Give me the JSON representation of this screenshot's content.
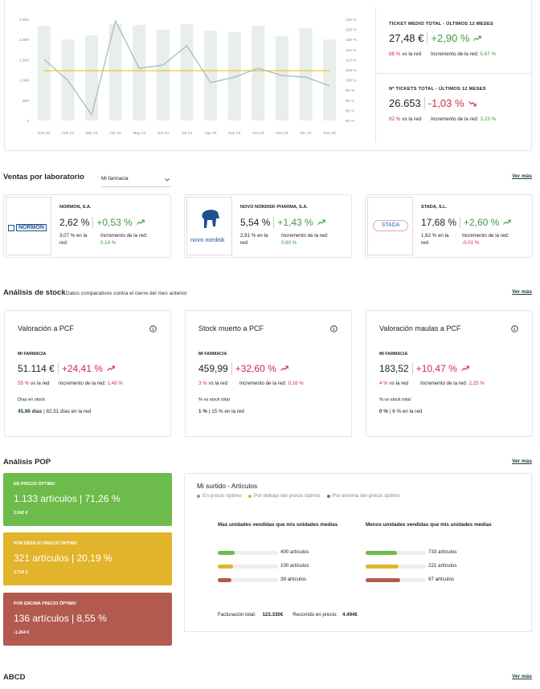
{
  "chart_data": {
    "type": "bar",
    "categories": [
      "Ene 24",
      "Feb 24",
      "Mar 24",
      "Abr 24",
      "May 24",
      "Jun 24",
      "Jul 24",
      "Ago 24",
      "Sep 24",
      "Oct 24",
      "Nov 24",
      "Dic 24",
      "Ene 25"
    ],
    "series": [
      {
        "type": "bar",
        "color": "#e8eee9",
        "values": [
          2340,
          2000,
          2100,
          2380,
          2360,
          2240,
          2380,
          2220,
          2180,
          2340,
          2080,
          2280,
          2000
        ]
      },
      {
        "type": "line",
        "color": "#f0c62a",
        "axis": "y2",
        "values": [
          104.6,
          104.6,
          104.6,
          104.6,
          104.6,
          104.6,
          104.6,
          104.6,
          104.6,
          104.6,
          104.6,
          104.6,
          104.6
        ]
      },
      {
        "type": "line",
        "color": "#a8bcc0",
        "axis": "y2",
        "values": [
          110.2,
          99.8,
          82.8,
          129.2,
          105.8,
          107.4,
          116.9,
          98.7,
          101.4,
          105.8,
          102.2,
          101.4,
          97.1
        ]
      }
    ],
    "ylim": [
      0,
      2500
    ],
    "yticks": [
      0,
      500,
      {
        "value": 1000,
        "label": "1.000"
      },
      {
        "value": 1500,
        "label": "1.500"
      },
      {
        "value": 2000,
        "label": "2.000"
      },
      {
        "value": 2500,
        "label": "2.500"
      }
    ],
    "y2lim": [
      80,
      130
    ],
    "y2ticks": [
      {
        "value": 80,
        "label": "80 %"
      },
      {
        "value": 85,
        "label": "85 %"
      },
      {
        "value": 90,
        "label": "90 %"
      },
      {
        "value": 95,
        "label": "95 %"
      },
      {
        "value": 100,
        "label": "100 %"
      },
      {
        "value": 105,
        "label": "105 %"
      },
      {
        "value": 110,
        "label": "110 %"
      },
      {
        "value": 115,
        "label": "115 %"
      },
      {
        "value": 120,
        "label": "120 %"
      },
      {
        "value": 125,
        "label": "125 %"
      },
      {
        "value": 130,
        "label": "130 %"
      }
    ],
    "grid": false
  },
  "kpis": [
    {
      "title": "TICKET MEDIO TOTAL - ÚLTIMOS 12 MESES",
      "value": "27,48 €",
      "delta": "+2,90 %",
      "delta_color": "#3e9b3e",
      "share": "88 %",
      "share_color": "#cf2a45",
      "share_label": "vs la red",
      "increase_label": "Incremento de la red:",
      "increase": "5,67 %",
      "increase_color": "#3e9b3e"
    },
    {
      "title": "Nº TICKETS TOTAL - ÚLTIMOS 12 MESES",
      "value": "26.653",
      "delta": "-1,03 %",
      "delta_color": "#cf2a45",
      "share": "82 %",
      "share_color": "#cf2a45",
      "share_label": "vs la red",
      "increase_label": "Incremento de la red:",
      "increase": "3,23 %",
      "increase_color": "#3e9b3e"
    }
  ],
  "sales": {
    "title": "Ventas por laboratorio",
    "filter": "Mi farmacia",
    "link": "Ver más",
    "cards": [
      {
        "logo": "NORMON",
        "name": "NORMON, S.A.",
        "value": "2,62 %",
        "delta": "+0,53 %",
        "delta_color": "#3e9b3e",
        "network": "3,07 % en la red",
        "increase_label": "Incremento de la red:",
        "increase": "0,14 %",
        "increase_color": "#3e9b3e"
      },
      {
        "logo": "novo nordisk",
        "name": "NOVO NORDISK PHARMA, S.A.",
        "value": "5,54 %",
        "delta": "+1,43 %",
        "delta_color": "#3e9b3e",
        "network": "2,91 % en la red",
        "increase_label": "Incremento de la red:",
        "increase": "0,60 %",
        "increase_color": "#3e9b3e"
      },
      {
        "logo": "STADA",
        "name": "STADA, S.L.",
        "value": "17,68 %",
        "delta": "+2,60 %",
        "delta_color": "#3e9b3e",
        "network": "1,62 % en la red",
        "increase_label": "Incremento de la red:",
        "increase": "-0,01 %",
        "increase_color": "#cf2a45"
      }
    ]
  },
  "stock": {
    "title": "Análisis de stock",
    "subtitle": "Datos comparativos contra el cierre del mes anterior",
    "link": "Ver más",
    "cards": [
      {
        "title": "Valoración a PCF",
        "section": "MI FARMACIA",
        "value": "51.114 €",
        "delta": "+24,41 %",
        "delta_color": "#cf2a45",
        "share": "55 %",
        "share_color": "#cf2a45",
        "share_label": "vs la red",
        "increase_label": "Incremento de la red:",
        "increase": "1,49 %",
        "increase_color": "#cf2a45",
        "metric_label": "Días en stock",
        "metric_value": "45,98 días",
        "metric_network": "| 82,51 días en la red"
      },
      {
        "title": "Stock muerto a PCF",
        "section": "MI FARMACIA",
        "value": "459,99",
        "delta": "+32,60 %",
        "delta_color": "#cf2a45",
        "share": "3 %",
        "share_color": "#cf2a45",
        "share_label": "vs la red",
        "increase_label": "Incremento de la red:",
        "increase": "0,16 %",
        "increase_color": "#cf2a45",
        "metric_label": "% vs stock total",
        "metric_value": "1 %",
        "metric_network": "| 15 % en la red"
      },
      {
        "title": "Valoración maulas a PCF",
        "section": "MI FARMACIA",
        "value": "183,52",
        "delta": "+10,47 %",
        "delta_color": "#cf2a45",
        "share": "4 %",
        "share_color": "#cf2a45",
        "share_label": "vs la red",
        "increase_label": "Incremento de la red:",
        "increase": "2,25 %",
        "increase_color": "#cf2a45",
        "metric_label": "% vs stock total",
        "metric_value": "0 %",
        "metric_network": "| 6 % en la red"
      }
    ]
  },
  "pop": {
    "title": "Análisis POP",
    "link": "Ver más",
    "boxes": [
      {
        "label": "EN PRECIO ÓPTIMO",
        "summary": "1.133 artículos | 71,26 %",
        "amount": "2.042 €",
        "color": "#6dbb4a"
      },
      {
        "label": "POR DEBAJO PRECIO ÓPTIMO",
        "summary": "321 artículos | 20,19 %",
        "amount": "3.716 €",
        "color": "#e2b42c"
      },
      {
        "label": "POR ENCIMA PRECIO ÓPTIMO",
        "summary": "136 artículos | 8,55 %",
        "amount": "-1.264 €",
        "color": "#b35a4f"
      }
    ],
    "detail": {
      "title": "Mi surtido - Artículos",
      "legend": [
        {
          "label": "En precio óptimo",
          "color": "#6dbb4a"
        },
        {
          "label": "Por debajo del precio óptimo",
          "color": "#e2b42c"
        },
        {
          "label": "Por encima del precio óptimo",
          "color": "#b35a4f"
        }
      ],
      "columns": [
        {
          "title": "Mas unidades vendidas que mis unidades medias",
          "rows": [
            {
              "value": 400,
              "label": "400 artículos"
            },
            {
              "value": 100,
              "label": "100 artículos"
            },
            {
              "value": 39,
              "label": "39 artículos"
            }
          ]
        },
        {
          "title": "Menos unidades vendidas que mis unidades medias",
          "rows": [
            {
              "value": 733,
              "label": "733 artículos"
            },
            {
              "value": 221,
              "label": "221 artículos"
            },
            {
              "value": 97,
              "label": "97 artículos"
            }
          ]
        }
      ],
      "footer": {
        "billing_label": "Facturación total:",
        "billing": "123.330€",
        "range_label": "Recorrido en precio:",
        "range": "4.494€"
      }
    }
  },
  "abcd": {
    "title": "ABCD",
    "link": "Ver más"
  }
}
